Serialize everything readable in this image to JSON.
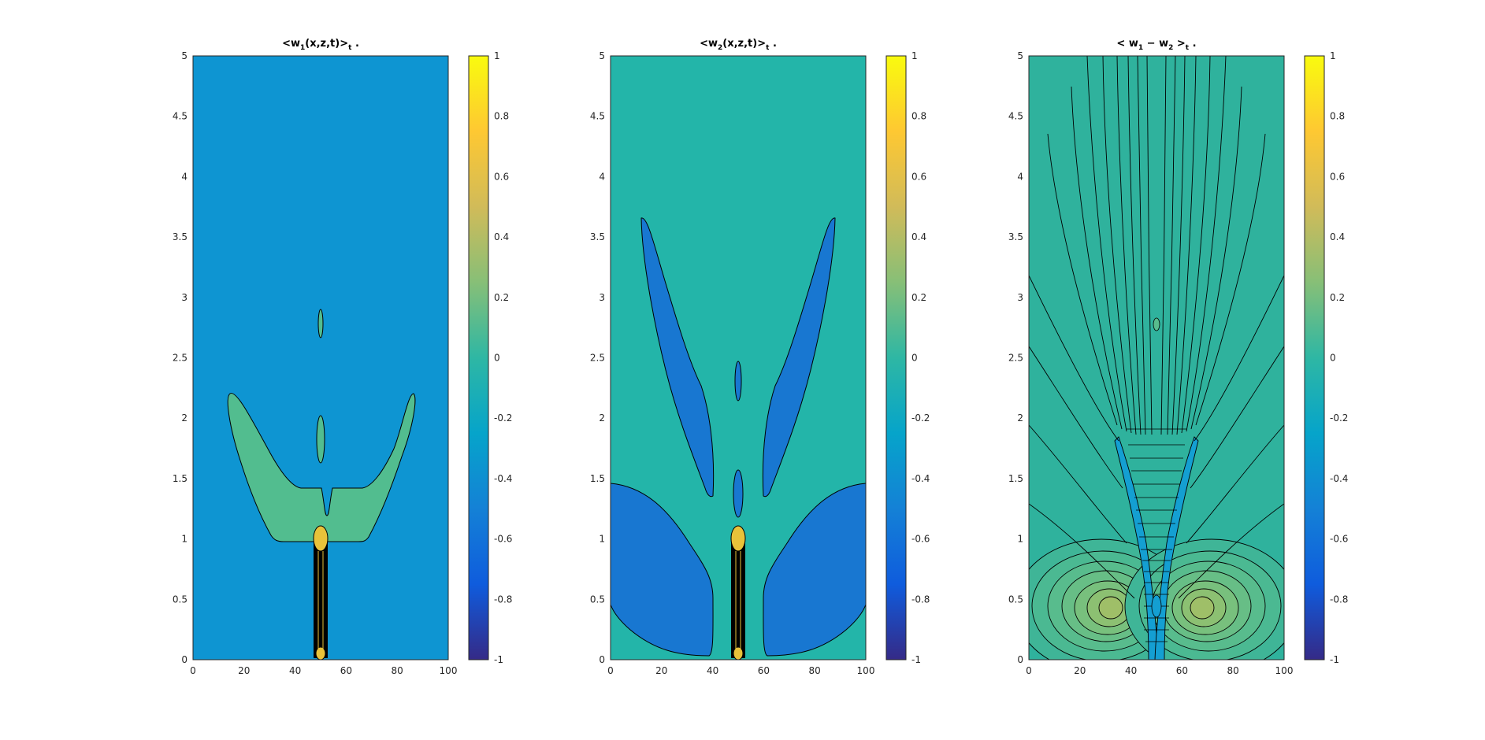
{
  "chart_data": [
    {
      "type": "contour",
      "title": {
        "pre": "<w",
        "sub": "1",
        "mid": "(x,z,t)>",
        "post_sub": "t",
        "end": " ."
      },
      "xlim": [
        0,
        100
      ],
      "ylim": [
        0,
        5
      ],
      "xticks": [
        "0",
        "20",
        "40",
        "60",
        "80",
        "100"
      ],
      "yticks": [
        "0",
        "0.5",
        "1",
        "1.5",
        "2",
        "2.5",
        "3",
        "3.5",
        "4",
        "4.5",
        "5"
      ],
      "background_color": "#0e95d2",
      "colorbar": {
        "ticks": [
          "-1",
          "-0.8",
          "-0.6",
          "-0.4",
          "-0.2",
          "0",
          "0.2",
          "0.4",
          "0.6",
          "0.8",
          "1"
        ]
      }
    },
    {
      "type": "contour",
      "title": {
        "pre": "<w",
        "sub": "2",
        "mid": "(x,z,t)>",
        "post_sub": "t",
        "end": " ."
      },
      "xlim": [
        0,
        100
      ],
      "ylim": [
        0,
        5
      ],
      "xticks": [
        "0",
        "20",
        "40",
        "60",
        "80",
        "100"
      ],
      "yticks": [
        "0",
        "0.5",
        "1",
        "1.5",
        "2",
        "2.5",
        "3",
        "3.5",
        "4",
        "4.5",
        "5"
      ],
      "background_color": "#23b5a9",
      "colorbar": {
        "ticks": [
          "-1",
          "-0.8",
          "-0.6",
          "-0.4",
          "-0.2",
          "0",
          "0.2",
          "0.4",
          "0.6",
          "0.8",
          "1"
        ]
      }
    },
    {
      "type": "contour",
      "title": {
        "pre": "< w",
        "sub": "1",
        "mid": " − w",
        "sub2": "2",
        "mid2": " >",
        "post_sub": "t",
        "end": " ."
      },
      "xlim": [
        0,
        100
      ],
      "ylim": [
        0,
        5
      ],
      "xticks": [
        "0",
        "20",
        "40",
        "60",
        "80",
        "100"
      ],
      "yticks": [
        "0",
        "0.5",
        "1",
        "1.5",
        "2",
        "2.5",
        "3",
        "3.5",
        "4",
        "4.5",
        "5"
      ],
      "background_color": "#2fb29d",
      "colorbar": {
        "ticks": [
          "-1",
          "-0.8",
          "-0.6",
          "-0.4",
          "-0.2",
          "0",
          "0.2",
          "0.4",
          "0.6",
          "0.8",
          "1"
        ]
      }
    }
  ],
  "colors": {
    "parula": [
      "#352a87",
      "#0f5cdd",
      "#1481d6",
      "#06a4ca",
      "#2eb7a4",
      "#87bf77",
      "#d1bb59",
      "#fec832",
      "#f9fb0e"
    ],
    "level_green": "#52bd8f",
    "level_blue": "#1877d1",
    "line": "#000000"
  }
}
